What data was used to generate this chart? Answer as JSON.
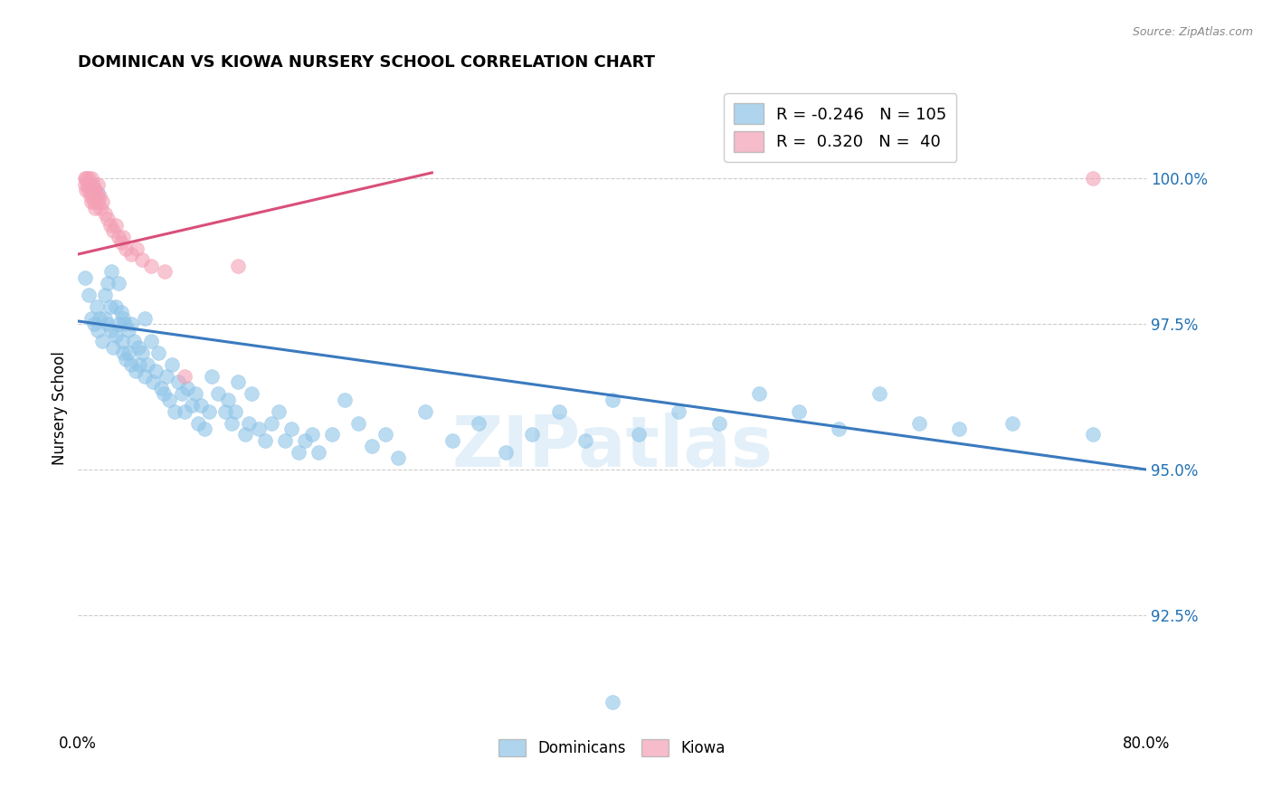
{
  "title": "DOMINICAN VS KIOWA NURSERY SCHOOL CORRELATION CHART",
  "source": "Source: ZipAtlas.com",
  "ylabel": "Nursery School",
  "ytick_labels": [
    "92.5%",
    "95.0%",
    "97.5%",
    "100.0%"
  ],
  "ytick_values": [
    0.925,
    0.95,
    0.975,
    1.0
  ],
  "xlim": [
    0.0,
    0.8
  ],
  "ylim": [
    0.905,
    1.016
  ],
  "blue_R": "-0.246",
  "blue_N": "105",
  "pink_R": "0.320",
  "pink_N": "40",
  "blue_color": "#8ec4e8",
  "pink_color": "#f4a0b5",
  "blue_line_color": "#3a7abf",
  "pink_line_color": "#d94f7a",
  "blue_trend_x": [
    0.0,
    0.8
  ],
  "blue_trend_y": [
    0.9755,
    0.95
  ],
  "pink_trend_x": [
    0.0,
    0.265
  ],
  "pink_trend_y": [
    0.987,
    1.001
  ],
  "blue_scatter_x": [
    0.005,
    0.008,
    0.01,
    0.01,
    0.012,
    0.014,
    0.015,
    0.015,
    0.016,
    0.018,
    0.02,
    0.02,
    0.022,
    0.022,
    0.024,
    0.025,
    0.025,
    0.026,
    0.028,
    0.028,
    0.03,
    0.03,
    0.032,
    0.033,
    0.034,
    0.034,
    0.035,
    0.036,
    0.038,
    0.038,
    0.04,
    0.04,
    0.042,
    0.043,
    0.045,
    0.046,
    0.048,
    0.05,
    0.05,
    0.052,
    0.055,
    0.056,
    0.058,
    0.06,
    0.062,
    0.064,
    0.066,
    0.068,
    0.07,
    0.072,
    0.075,
    0.078,
    0.08,
    0.082,
    0.085,
    0.088,
    0.09,
    0.092,
    0.095,
    0.098,
    0.1,
    0.105,
    0.11,
    0.112,
    0.115,
    0.118,
    0.12,
    0.125,
    0.128,
    0.13,
    0.135,
    0.14,
    0.145,
    0.15,
    0.155,
    0.16,
    0.165,
    0.17,
    0.175,
    0.18,
    0.19,
    0.2,
    0.21,
    0.22,
    0.23,
    0.24,
    0.26,
    0.28,
    0.3,
    0.32,
    0.34,
    0.36,
    0.38,
    0.4,
    0.42,
    0.45,
    0.48,
    0.51,
    0.54,
    0.57,
    0.6,
    0.63,
    0.66,
    0.7,
    0.76
  ],
  "blue_scatter_y": [
    0.983,
    0.98,
    0.9985,
    0.976,
    0.975,
    0.978,
    0.9975,
    0.974,
    0.976,
    0.972,
    0.98,
    0.976,
    0.982,
    0.975,
    0.978,
    0.984,
    0.974,
    0.971,
    0.978,
    0.973,
    0.982,
    0.975,
    0.977,
    0.972,
    0.976,
    0.97,
    0.975,
    0.969,
    0.974,
    0.97,
    0.975,
    0.968,
    0.972,
    0.967,
    0.971,
    0.968,
    0.97,
    0.976,
    0.966,
    0.968,
    0.972,
    0.965,
    0.967,
    0.97,
    0.964,
    0.963,
    0.966,
    0.962,
    0.968,
    0.96,
    0.965,
    0.963,
    0.96,
    0.964,
    0.961,
    0.963,
    0.958,
    0.961,
    0.957,
    0.96,
    0.966,
    0.963,
    0.96,
    0.962,
    0.958,
    0.96,
    0.965,
    0.956,
    0.958,
    0.963,
    0.957,
    0.955,
    0.958,
    0.96,
    0.955,
    0.957,
    0.953,
    0.955,
    0.956,
    0.953,
    0.956,
    0.962,
    0.958,
    0.954,
    0.956,
    0.952,
    0.96,
    0.955,
    0.958,
    0.953,
    0.956,
    0.96,
    0.955,
    0.962,
    0.956,
    0.96,
    0.958,
    0.963,
    0.96,
    0.957,
    0.963,
    0.958,
    0.957,
    0.958,
    0.956
  ],
  "pink_scatter_x": [
    0.005,
    0.005,
    0.006,
    0.006,
    0.007,
    0.008,
    0.008,
    0.009,
    0.009,
    0.01,
    0.01,
    0.01,
    0.011,
    0.011,
    0.012,
    0.012,
    0.013,
    0.013,
    0.014,
    0.015,
    0.015,
    0.016,
    0.017,
    0.018,
    0.02,
    0.022,
    0.024,
    0.026,
    0.028,
    0.03,
    0.032,
    0.034,
    0.036,
    0.04,
    0.044,
    0.048,
    0.055,
    0.065,
    0.08,
    0.12
  ],
  "pink_scatter_y": [
    1.0,
    0.999,
    1.0,
    0.998,
    0.999,
    1.0,
    0.998,
    0.999,
    0.997,
    1.0,
    0.998,
    0.996,
    0.999,
    0.997,
    0.998,
    0.996,
    0.998,
    0.995,
    0.997,
    0.999,
    0.996,
    0.997,
    0.995,
    0.996,
    0.994,
    0.993,
    0.992,
    0.991,
    0.992,
    0.99,
    0.989,
    0.99,
    0.988,
    0.987,
    0.988,
    0.986,
    0.985,
    0.984,
    0.966,
    0.985
  ],
  "blue_outlier_x": [
    0.4
  ],
  "blue_outlier_y": [
    0.91
  ],
  "pink_outlier_x": [
    0.76
  ],
  "pink_outlier_y": [
    1.0
  ]
}
